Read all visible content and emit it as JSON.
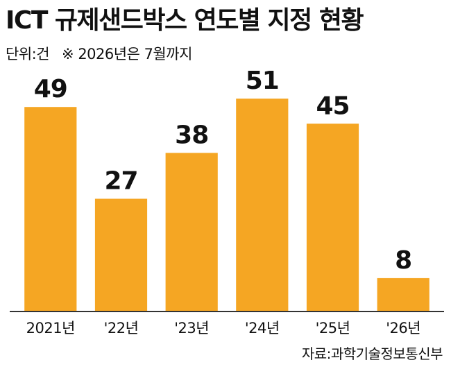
{
  "header": {
    "title": "ICT 규제샌드박스 연도별 지정 현황",
    "unit": "단위:건",
    "note": "※ 2026년은 7월까지"
  },
  "source": "자료:과학기술정보통신부",
  "colors": {
    "bar": "#F5A623",
    "axis": "#333333",
    "text": "#111111"
  },
  "chart_data": {
    "type": "bar",
    "title": "ICT 규제샌드박스 연도별 지정 현황",
    "xlabel": "",
    "ylabel": "",
    "categories": [
      "2021년",
      "'22년",
      "'23년",
      "'24년",
      "'25년",
      "'26년"
    ],
    "values": [
      49,
      27,
      38,
      51,
      45,
      8
    ],
    "ylim": [
      0,
      60
    ],
    "grid": false,
    "data_labels": true
  }
}
